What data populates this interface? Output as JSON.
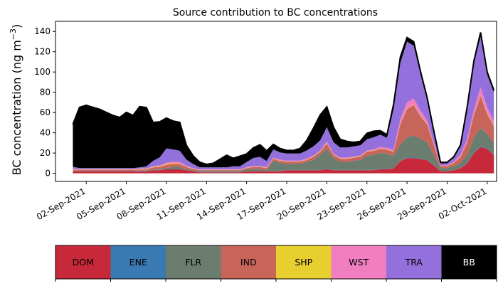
{
  "chart_data": {
    "type": "area",
    "title": "Source contribution to BC concentrations",
    "ylabel_main": "BC concentration (ng m",
    "ylabel_sup": "−3",
    "ylabel_close": ")",
    "ylim": [
      -8,
      150
    ],
    "yticks": [
      0,
      20,
      40,
      60,
      80,
      100,
      120,
      140
    ],
    "xlim": [
      -1.3,
      31.7
    ],
    "xtick_days": [
      1,
      4,
      7,
      10,
      13,
      16,
      19,
      22,
      25,
      28,
      31
    ],
    "xtick_labels": [
      "02-Sep-2021",
      "05-Sep-2021",
      "08-Sep-2021",
      "11-Sep-2021",
      "14-Sep-2021",
      "17-Sep-2021",
      "20-Sep-2021",
      "23-Sep-2021",
      "26-Sep-2021",
      "29-Sep-2021",
      "02-Oct-2021"
    ],
    "x_days": [
      0.0,
      0.5,
      1.0,
      1.5,
      2.0,
      2.5,
      3.0,
      3.5,
      4.0,
      4.5,
      5.0,
      5.5,
      6.0,
      6.5,
      7.0,
      7.5,
      8.0,
      8.5,
      9.0,
      9.5,
      10.0,
      10.5,
      11.0,
      11.5,
      12.0,
      12.5,
      13.0,
      13.5,
      14.0,
      14.5,
      15.0,
      15.5,
      16.0,
      16.5,
      17.0,
      17.5,
      18.0,
      18.5,
      19.0,
      19.5,
      20.0,
      20.5,
      21.0,
      21.5,
      22.0,
      22.5,
      23.0,
      23.5,
      24.0,
      24.5,
      25.0,
      25.5,
      26.0,
      26.5,
      27.0,
      27.5,
      28.0,
      28.5,
      29.0,
      29.5,
      30.0,
      30.5,
      31.0,
      31.5
    ],
    "series": [
      {
        "name": "DOM",
        "color": "#c8293a",
        "values": [
          2,
          2,
          2,
          2,
          2,
          2,
          2,
          2,
          2,
          2,
          2,
          2,
          3,
          3,
          4,
          4,
          4,
          3,
          2,
          1,
          1,
          1,
          1,
          1,
          1,
          1,
          2,
          2,
          2,
          2,
          2,
          2,
          3,
          3,
          3,
          3,
          3,
          3,
          4,
          3,
          3,
          3,
          3,
          3,
          3,
          3,
          4,
          4,
          5,
          12,
          15,
          15,
          14,
          13,
          8,
          2,
          2,
          3,
          5,
          10,
          20,
          26,
          24,
          18
        ]
      },
      {
        "name": "ENE",
        "color": "#3a7ab3",
        "values": [
          0.2,
          0.2,
          0.2,
          0.2,
          0.2,
          0.2,
          0.2,
          0.2,
          0.2,
          0.2,
          0.3,
          0.3,
          0.3,
          0.3,
          0.3,
          0.3,
          0.3,
          0.2,
          0.2,
          0.2,
          0.2,
          0.2,
          0.2,
          0.2,
          0.2,
          0.2,
          0.2,
          0.2,
          0.2,
          0.2,
          0.3,
          0.3,
          0.3,
          0.3,
          0.3,
          0.3,
          0.3,
          0.3,
          0.3,
          0.3,
          0.3,
          0.3,
          0.3,
          0.3,
          0.3,
          0.3,
          0.3,
          0.3,
          0.3,
          0.4,
          0.5,
          0.5,
          0.5,
          0.4,
          0.3,
          0.2,
          0.2,
          0.2,
          0.3,
          0.4,
          0.5,
          0.6,
          0.6,
          0.5
        ]
      },
      {
        "name": "FLR",
        "color": "#6b7d6e",
        "values": [
          0.5,
          0.3,
          0.3,
          0.3,
          0.3,
          0.3,
          0.3,
          0.3,
          0.3,
          0.3,
          0.5,
          0.5,
          0.5,
          1,
          1,
          2,
          2,
          1,
          1,
          1,
          1,
          1,
          1,
          1,
          1,
          1,
          2,
          2,
          2,
          1,
          10,
          8,
          6,
          6,
          6,
          8,
          10,
          15,
          20,
          12,
          8,
          8,
          9,
          10,
          14,
          15,
          16,
          15,
          12,
          16,
          20,
          22,
          20,
          17,
          10,
          3,
          3,
          4,
          5,
          8,
          15,
          18,
          14,
          12
        ]
      },
      {
        "name": "IND",
        "color": "#c8655a",
        "values": [
          1,
          1,
          1,
          1,
          1,
          1,
          1,
          1,
          1,
          1,
          1,
          1,
          2,
          2,
          3,
          3,
          3,
          2,
          1,
          1,
          1,
          1,
          1,
          1,
          1,
          1,
          1,
          2,
          2,
          2,
          2,
          2,
          2,
          2,
          2,
          2,
          3,
          3,
          5,
          3,
          3,
          3,
          3,
          3,
          4,
          4,
          4,
          4,
          4,
          20,
          28,
          30,
          22,
          18,
          10,
          2,
          2,
          3,
          6,
          12,
          22,
          32,
          20,
          16
        ]
      },
      {
        "name": "SHP",
        "color": "#e8cf30",
        "values": [
          0.2,
          0.2,
          0.2,
          0.2,
          0.2,
          0.2,
          0.2,
          0.2,
          0.2,
          0.2,
          0.3,
          0.3,
          0.5,
          0.5,
          0.8,
          0.8,
          0.5,
          0.3,
          0.2,
          0.2,
          0.2,
          0.2,
          0.2,
          0.2,
          0.2,
          0.2,
          0.2,
          0.2,
          0.2,
          0.2,
          0.3,
          0.3,
          0.3,
          0.3,
          0.3,
          0.3,
          0.3,
          0.3,
          0.3,
          0.3,
          0.3,
          0.3,
          0.3,
          0.3,
          0.3,
          0.3,
          0.3,
          0.3,
          0.3,
          0.5,
          0.5,
          0.5,
          0.5,
          0.5,
          0.3,
          0.2,
          0.2,
          0.2,
          0.3,
          0.3,
          0.5,
          0.5,
          0.5,
          0.4
        ]
      },
      {
        "name": "WST",
        "color": "#f07ec0",
        "values": [
          0.5,
          0.5,
          0.5,
          0.5,
          0.5,
          0.5,
          0.5,
          0.5,
          0.5,
          0.5,
          0.8,
          0.8,
          1,
          1,
          1.5,
          1.5,
          1.5,
          1,
          0.8,
          0.5,
          0.5,
          0.5,
          0.5,
          0.5,
          0.5,
          0.5,
          0.8,
          0.8,
          0.8,
          0.8,
          1,
          1,
          1,
          1,
          1,
          1,
          1,
          1,
          2,
          1,
          1,
          1,
          1,
          1,
          1,
          1,
          1.5,
          1.5,
          2,
          5,
          6,
          6,
          5,
          4,
          2,
          0.5,
          0.5,
          1,
          2,
          3,
          5,
          8,
          6,
          5
        ]
      },
      {
        "name": "TRA",
        "color": "#9370db",
        "values": [
          2,
          1,
          1,
          1,
          1,
          1,
          1,
          1,
          1,
          1,
          1,
          2,
          5,
          8,
          14,
          12,
          11,
          6,
          4,
          2,
          2,
          2,
          2,
          2,
          3,
          3,
          5,
          8,
          9,
          6,
          8,
          7,
          7,
          7,
          7,
          8,
          9,
          10,
          14,
          11,
          10,
          10,
          10,
          10,
          11,
          12,
          12,
          10,
          40,
          55,
          60,
          52,
          36,
          20,
          10,
          2,
          2,
          4,
          8,
          30,
          45,
          50,
          32,
          28
        ]
      },
      {
        "name": "BB",
        "color": "#000000",
        "values": [
          42,
          60,
          62,
          60,
          58,
          55,
          52,
          50,
          55,
          52,
          60,
          58,
          38,
          35,
          30,
          28,
          28,
          14,
          8,
          5,
          3,
          4,
          8,
          12,
          8,
          10,
          8,
          10,
          12,
          10,
          5,
          4,
          3,
          3,
          5,
          10,
          18,
          25,
          20,
          15,
          8,
          6,
          4,
          4,
          6,
          6,
          4,
          3,
          5,
          6,
          4,
          4,
          3,
          2,
          1.5,
          1,
          1,
          1,
          1.5,
          2,
          3,
          4,
          3,
          2
        ]
      }
    ],
    "legend_placement": "bottom"
  }
}
